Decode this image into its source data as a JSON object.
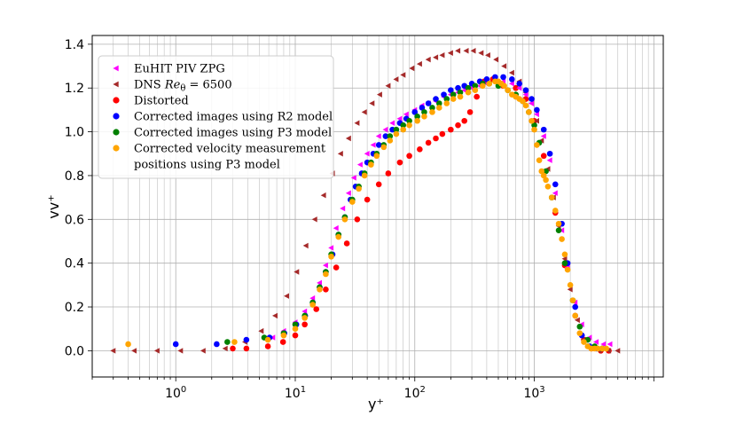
{
  "chart_data": {
    "type": "scatter",
    "title": "",
    "xlabel": "y⁺",
    "ylabel": "vv⁺",
    "xscale": "log",
    "xlim": [
      0.2,
      12000
    ],
    "ylim": [
      -0.12,
      1.44
    ],
    "grid": true,
    "legend_position": "top-left",
    "x_ticks": [
      {
        "value": 1,
        "base": "10",
        "exp": "0"
      },
      {
        "value": 10,
        "base": "10",
        "exp": "1"
      },
      {
        "value": 100,
        "base": "10",
        "exp": "2"
      },
      {
        "value": 1000,
        "base": "10",
        "exp": "3"
      }
    ],
    "y_ticks": [
      "0.0",
      "0.2",
      "0.4",
      "0.6",
      "0.8",
      "1.0",
      "1.2",
      "1.4"
    ],
    "series": [
      {
        "name": "Distorted",
        "legend": "Distorted",
        "color": "#ff0000",
        "marker": "circle",
        "x": [
          3,
          3.9,
          5.9,
          7.9,
          10,
          12,
          15,
          18,
          22,
          27,
          33,
          40,
          50,
          60,
          75,
          90,
          110,
          130,
          150,
          170,
          200,
          230,
          260,
          290,
          330,
          380,
          450,
          550,
          700,
          850,
          1000,
          1200,
          1500,
          1800,
          2200,
          2600,
          3000,
          3600,
          4200
        ],
        "y": [
          0.01,
          0.01,
          0.02,
          0.04,
          0.07,
          0.12,
          0.19,
          0.28,
          0.38,
          0.49,
          0.6,
          0.69,
          0.76,
          0.81,
          0.86,
          0.89,
          0.92,
          0.95,
          0.97,
          0.99,
          1.01,
          1.03,
          1.05,
          1.09,
          1.16,
          1.23,
          1.24,
          1.21,
          1.2,
          1.15,
          1.05,
          0.89,
          0.63,
          0.39,
          0.16,
          0.05,
          0.01,
          0.0,
          0.0
        ]
      },
      {
        "name": "DNS",
        "legend_prefix": "DNS ",
        "legend_math": "Re",
        "legend_sub": "θ",
        "legend_suffix": " = 6500",
        "color": "#a52a2a",
        "marker": "triangle-left",
        "x": [
          0.3,
          0.45,
          0.7,
          1.1,
          1.7,
          2.6,
          3.8,
          5.2,
          6.8,
          8.5,
          10.3,
          12.3,
          14.6,
          17.3,
          20.5,
          24,
          28,
          33,
          38,
          44,
          51,
          60,
          70,
          80,
          95,
          110,
          130,
          150,
          170,
          200,
          230,
          270,
          310,
          360,
          410,
          480,
          560,
          650,
          750,
          850,
          950,
          1050,
          1150,
          1300,
          1450,
          1600,
          1800,
          2000,
          2300,
          2600,
          3000,
          3500,
          4200,
          5000
        ],
        "y": [
          0.0,
          0.0,
          0.0,
          0.0,
          0.0,
          0.01,
          0.04,
          0.09,
          0.16,
          0.25,
          0.36,
          0.48,
          0.6,
          0.71,
          0.81,
          0.9,
          0.97,
          1.04,
          1.09,
          1.13,
          1.17,
          1.21,
          1.24,
          1.26,
          1.29,
          1.31,
          1.33,
          1.34,
          1.35,
          1.36,
          1.37,
          1.37,
          1.37,
          1.36,
          1.35,
          1.33,
          1.3,
          1.27,
          1.23,
          1.18,
          1.13,
          1.05,
          0.96,
          0.83,
          0.7,
          0.57,
          0.42,
          0.28,
          0.14,
          0.05,
          0.01,
          0.0,
          0.0,
          0.0
        ]
      },
      {
        "name": "EuHIT PIV ZPG",
        "legend": "EuHIT PIV ZPG",
        "color": "#ff00ff",
        "marker": "triangle-left",
        "x": [
          6.5,
          8,
          10,
          12,
          14,
          16,
          18,
          20,
          22,
          25,
          28,
          31,
          35,
          40,
          45,
          50,
          57,
          65,
          75,
          85,
          100,
          115,
          130,
          150,
          175,
          200,
          230,
          260,
          300,
          350,
          400,
          470,
          550,
          650,
          750,
          850,
          950,
          1050,
          1200,
          1350,
          1500,
          1700,
          1900,
          2200,
          2500,
          2900,
          3300,
          3800,
          4300
        ],
        "y": [
          0.06,
          0.09,
          0.13,
          0.18,
          0.24,
          0.31,
          0.39,
          0.47,
          0.56,
          0.65,
          0.72,
          0.79,
          0.85,
          0.9,
          0.94,
          0.98,
          1.01,
          1.04,
          1.06,
          1.08,
          1.1,
          1.12,
          1.13,
          1.14,
          1.16,
          1.17,
          1.18,
          1.19,
          1.2,
          1.21,
          1.22,
          1.23,
          1.23,
          1.22,
          1.2,
          1.17,
          1.13,
          1.08,
          0.98,
          0.87,
          0.72,
          0.55,
          0.38,
          0.22,
          0.12,
          0.06,
          0.04,
          0.03,
          0.03
        ]
      },
      {
        "name": "R2 model",
        "legend": "Corrected images using R2 model",
        "color": "#0000ff",
        "marker": "circle",
        "x": [
          1.0,
          2.2,
          3.9,
          6.1,
          8.1,
          10.2,
          12.1,
          14,
          16,
          18,
          20.5,
          23,
          26,
          29,
          32,
          36,
          40,
          45,
          50,
          57,
          65,
          75,
          85,
          100,
          115,
          130,
          150,
          175,
          200,
          230,
          260,
          300,
          350,
          400,
          470,
          550,
          650,
          750,
          850,
          950,
          1050,
          1200,
          1350,
          1500,
          1700,
          1900,
          2200,
          2500,
          2900,
          3300,
          3700
        ],
        "y": [
          0.03,
          0.03,
          0.05,
          0.06,
          0.08,
          0.12,
          0.16,
          0.22,
          0.29,
          0.36,
          0.44,
          0.53,
          0.61,
          0.69,
          0.75,
          0.81,
          0.86,
          0.9,
          0.94,
          0.98,
          1.01,
          1.04,
          1.06,
          1.09,
          1.11,
          1.13,
          1.15,
          1.17,
          1.19,
          1.2,
          1.21,
          1.22,
          1.23,
          1.24,
          1.25,
          1.25,
          1.24,
          1.22,
          1.19,
          1.15,
          1.1,
          1.01,
          0.9,
          0.76,
          0.58,
          0.4,
          0.2,
          0.07,
          0.02,
          0.01,
          0.01
        ]
      },
      {
        "name": "P3 model",
        "legend": "Corrected images using P3 model",
        "color": "#008000",
        "marker": "circle",
        "x": [
          2.7,
          5.5,
          8,
          10,
          12,
          14,
          16,
          18,
          20,
          23,
          26,
          30,
          34,
          38,
          43,
          48,
          55,
          62,
          70,
          80,
          90,
          105,
          120,
          140,
          160,
          185,
          210,
          240,
          280,
          320,
          370,
          420,
          500,
          600,
          700,
          800,
          900,
          1000,
          1100,
          1250,
          1400,
          1600,
          1800,
          2100,
          2400,
          2800,
          3200,
          3700
        ],
        "y": [
          0.04,
          0.06,
          0.08,
          0.12,
          0.16,
          0.22,
          0.29,
          0.36,
          0.44,
          0.53,
          0.61,
          0.69,
          0.75,
          0.81,
          0.86,
          0.9,
          0.94,
          0.98,
          1.01,
          1.03,
          1.05,
          1.07,
          1.09,
          1.11,
          1.13,
          1.15,
          1.17,
          1.18,
          1.2,
          1.21,
          1.22,
          1.22,
          1.21,
          1.19,
          1.17,
          1.14,
          1.09,
          1.03,
          0.95,
          0.82,
          0.7,
          0.55,
          0.4,
          0.23,
          0.11,
          0.05,
          0.02,
          0.01
        ]
      },
      {
        "name": "P3 positions",
        "legend_lines": [
          "Corrected velocity measurement",
          " positions using P3 model"
        ],
        "color": "#ffa500",
        "marker": "circle",
        "x": [
          0.4,
          3.1,
          5.9,
          8,
          10,
          12,
          14,
          16,
          18,
          20,
          23,
          26,
          30,
          34,
          38,
          43,
          48,
          55,
          62,
          70,
          80,
          90,
          105,
          120,
          140,
          160,
          185,
          210,
          240,
          280,
          320,
          370,
          420,
          470,
          500,
          530,
          560,
          600,
          650,
          700,
          750,
          800,
          850,
          900,
          950,
          1000,
          1050,
          1100,
          1150,
          1200,
          1250,
          1300,
          1400,
          1500,
          1600,
          1700,
          1800,
          1900,
          2000,
          2100,
          2200,
          2400,
          2600,
          2800,
          3000,
          3200,
          3400,
          3700,
          4000
        ],
        "y": [
          0.03,
          0.04,
          0.05,
          0.07,
          0.1,
          0.15,
          0.21,
          0.28,
          0.35,
          0.43,
          0.52,
          0.6,
          0.68,
          0.74,
          0.8,
          0.85,
          0.89,
          0.93,
          0.96,
          0.99,
          1.01,
          1.03,
          1.05,
          1.07,
          1.09,
          1.11,
          1.13,
          1.15,
          1.16,
          1.18,
          1.19,
          1.21,
          1.22,
          1.23,
          1.23,
          1.22,
          1.21,
          1.19,
          1.17,
          1.16,
          1.15,
          1.14,
          1.12,
          1.09,
          1.05,
          1.01,
          0.94,
          0.87,
          0.82,
          0.8,
          0.78,
          0.75,
          0.7,
          0.64,
          0.58,
          0.51,
          0.44,
          0.37,
          0.3,
          0.23,
          0.16,
          0.08,
          0.04,
          0.02,
          0.01,
          0.01,
          0.01,
          0.01,
          0.01
        ]
      }
    ]
  }
}
